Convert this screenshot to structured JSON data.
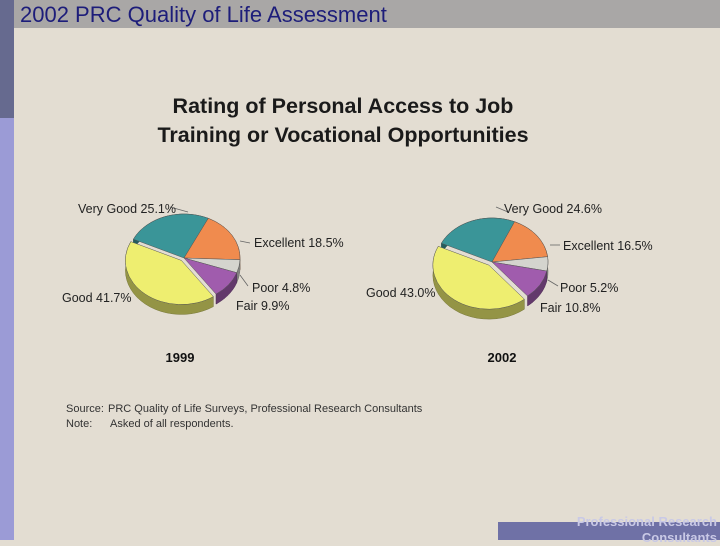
{
  "header": {
    "title": "2002 PRC Quality of Life Assessment"
  },
  "chart_data": [
    {
      "type": "pie",
      "title": "Rating of Personal Access to Job Training or Vocational Opportunities",
      "label": "1999",
      "slices": [
        {
          "name": "Very Good",
          "value": 25.1,
          "label": "Very Good  25.1%",
          "color": "#3a9598"
        },
        {
          "name": "Excellent",
          "value": 18.5,
          "label": "Excellent  18.5%",
          "color": "#f08b4e"
        },
        {
          "name": "Poor",
          "value": 4.8,
          "label": "Poor  4.8%",
          "color": "#d4d4ce"
        },
        {
          "name": "Fair",
          "value": 9.9,
          "label": "Fair  9.9%",
          "color": "#a05cad"
        },
        {
          "name": "Good",
          "value": 41.7,
          "label": "Good  41.7%",
          "color": "#eeee70"
        }
      ]
    },
    {
      "type": "pie",
      "title": "Rating of Personal Access to Job Training or Vocational Opportunities",
      "label": "2002",
      "slices": [
        {
          "name": "Very Good",
          "value": 24.6,
          "label": "Very Good  24.6%",
          "color": "#3a9598"
        },
        {
          "name": "Excellent",
          "value": 16.5,
          "label": "Excellent  16.5%",
          "color": "#f08b4e"
        },
        {
          "name": "Poor",
          "value": 5.2,
          "label": "Poor  5.2%",
          "color": "#d4d4ce"
        },
        {
          "name": "Fair",
          "value": 10.8,
          "label": "Fair  10.8%",
          "color": "#a05cad"
        },
        {
          "name": "Good",
          "value": 43.0,
          "label": "Good  43.0%",
          "color": "#eeee70"
        }
      ]
    }
  ],
  "chart_title_line1": "Rating of Personal Access to Job",
  "chart_title_line2": "Training or Vocational Opportunities",
  "notes": {
    "source_label": "Source:",
    "source_text": "PRC Quality of Life Surveys, Professional Research Consultants",
    "note_label": "Note:",
    "note_text": "Asked of all respondents."
  },
  "footer": {
    "text": "Professional Research Consultants"
  }
}
